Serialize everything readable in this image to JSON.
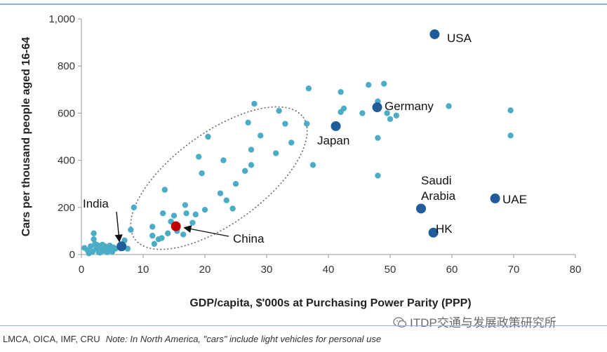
{
  "chart_data": {
    "type": "scatter",
    "xlabel": "GDP/capita, $'000s at Purchasing Power Parity (PPP)",
    "ylabel": "Cars per thousand people aged 16-64",
    "xlim": [
      0,
      80
    ],
    "ylim": [
      0,
      1000
    ],
    "x_ticks": [
      "0",
      "10",
      "20",
      "30",
      "40",
      "50",
      "60",
      "70",
      "80"
    ],
    "y_ticks": [
      "0",
      "200",
      "400",
      "600",
      "800",
      "1,000"
    ],
    "grid": false,
    "colors": {
      "other": "#4bacc6",
      "labeled": "#1f5c99",
      "china": "#c00000"
    },
    "other_points": [
      [
        0.5,
        28
      ],
      [
        1.0,
        18
      ],
      [
        1.5,
        35
      ],
      [
        1.8,
        12
      ],
      [
        2.0,
        90
      ],
      [
        2.0,
        65
      ],
      [
        2.2,
        45
      ],
      [
        2.4,
        25
      ],
      [
        2.6,
        40
      ],
      [
        2.8,
        10
      ],
      [
        3.0,
        30
      ],
      [
        3.2,
        20
      ],
      [
        3.4,
        42
      ],
      [
        3.6,
        15
      ],
      [
        3.8,
        35
      ],
      [
        4.0,
        28
      ],
      [
        4.2,
        10
      ],
      [
        4.4,
        30
      ],
      [
        4.6,
        38
      ],
      [
        4.8,
        20
      ],
      [
        5.0,
        12
      ],
      [
        5.2,
        30
      ],
      [
        5.5,
        25
      ],
      [
        3.0,
        8
      ],
      [
        1.2,
        5
      ],
      [
        7.0,
        60
      ],
      [
        7.5,
        25
      ],
      [
        8.0,
        105
      ],
      [
        8.5,
        200
      ],
      [
        11.5,
        118
      ],
      [
        11.5,
        80
      ],
      [
        11.8,
        45
      ],
      [
        12.5,
        65
      ],
      [
        13.0,
        70
      ],
      [
        13.2,
        175
      ],
      [
        13.5,
        275
      ],
      [
        14.0,
        90
      ],
      [
        14.5,
        140
      ],
      [
        15.0,
        165
      ],
      [
        15.5,
        100
      ],
      [
        16.5,
        85
      ],
      [
        16.8,
        210
      ],
      [
        17.0,
        175
      ],
      [
        18.0,
        135
      ],
      [
        18.5,
        170
      ],
      [
        19.0,
        415
      ],
      [
        19.5,
        345
      ],
      [
        20.0,
        190
      ],
      [
        20.5,
        500
      ],
      [
        22.5,
        260
      ],
      [
        23.0,
        400
      ],
      [
        23.5,
        230
      ],
      [
        24.5,
        195
      ],
      [
        25.0,
        300
      ],
      [
        26.5,
        355
      ],
      [
        27.0,
        560
      ],
      [
        27.5,
        445
      ],
      [
        27.5,
        380
      ],
      [
        28.0,
        640
      ],
      [
        29.0,
        505
      ],
      [
        31.5,
        430
      ],
      [
        32.0,
        610
      ],
      [
        33.0,
        555
      ],
      [
        34.0,
        475
      ],
      [
        36.5,
        555
      ],
      [
        36.8,
        705
      ],
      [
        37.5,
        380
      ],
      [
        42.0,
        690
      ],
      [
        42.0,
        605
      ],
      [
        42.5,
        620
      ],
      [
        45.5,
        600
      ],
      [
        46.5,
        720
      ],
      [
        48.0,
        650
      ],
      [
        48.0,
        495
      ],
      [
        48.0,
        335
      ],
      [
        49.0,
        725
      ],
      [
        49.5,
        600
      ],
      [
        50.0,
        575
      ],
      [
        51.0,
        590
      ],
      [
        59.5,
        630
      ],
      [
        69.5,
        612
      ],
      [
        69.5,
        505
      ]
    ],
    "labeled_points": [
      {
        "name": "USA",
        "x": 57.2,
        "y": 935
      },
      {
        "name": "Germany",
        "x": 47.9,
        "y": 625
      },
      {
        "name": "Japan",
        "x": 41.2,
        "y": 545
      },
      {
        "name": "Saudi Arabia",
        "x": 55.0,
        "y": 195
      },
      {
        "name": "UAE",
        "x": 67.0,
        "y": 238
      },
      {
        "name": "HK",
        "x": 57.0,
        "y": 93
      },
      {
        "name": "India",
        "x": 6.5,
        "y": 35
      },
      {
        "name": "China",
        "x": 15.3,
        "y": 120
      }
    ],
    "callouts": {
      "usa": "USA",
      "germany": "Germany",
      "japan": "Japan",
      "saudi_line1": "Saudi",
      "saudi_line2": "Arabia",
      "uae": "UAE",
      "hk": "HK",
      "india": "India",
      "china": "China"
    }
  },
  "footer": {
    "source": "LMCA, OICA, IMF, CRU",
    "note": "Note: In North America, \"cars\" include light vehicles for personal use"
  },
  "watermark": {
    "text": "ITDP交通与发展政策研究所",
    "icon": "wechat-icon"
  }
}
